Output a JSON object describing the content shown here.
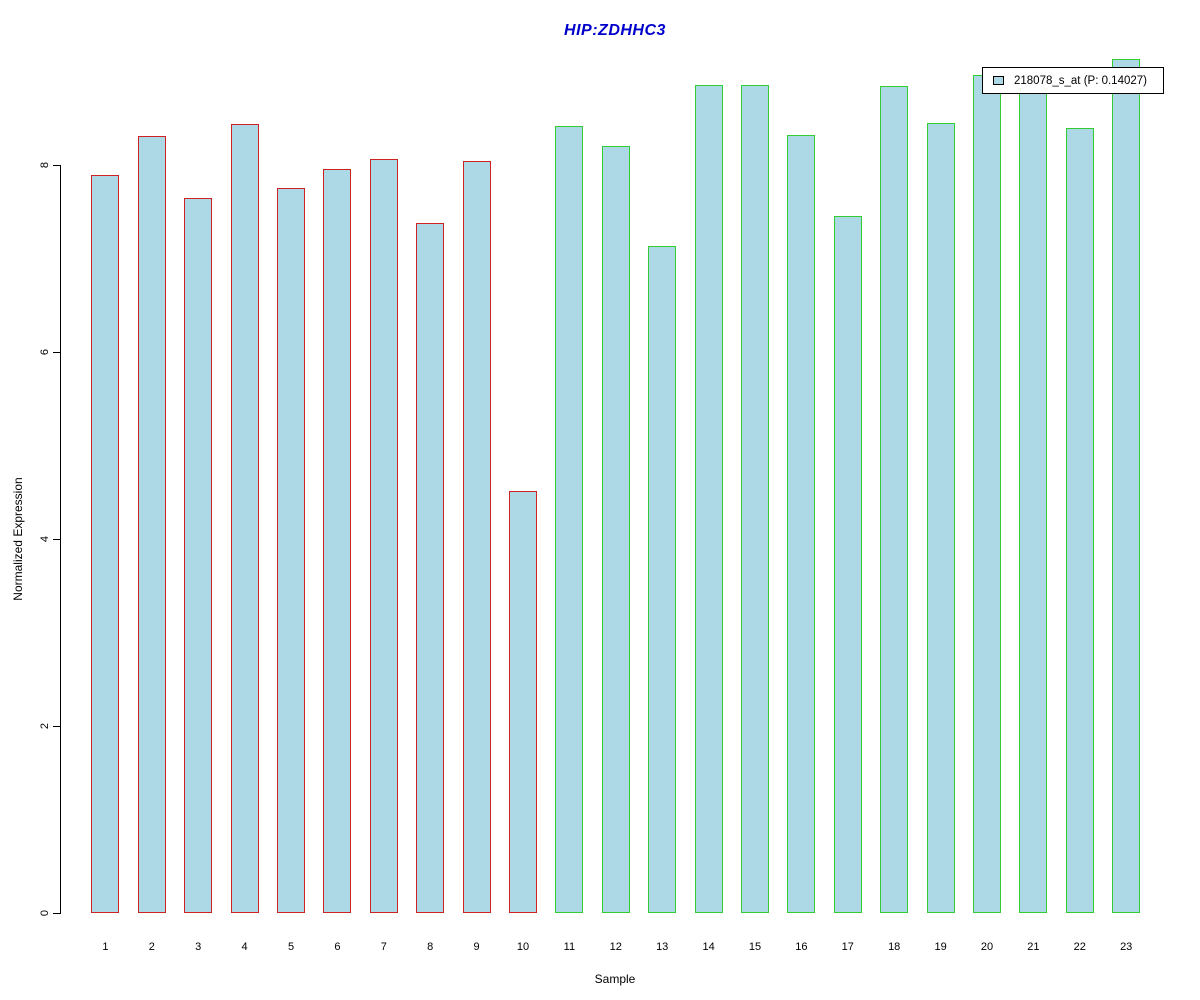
{
  "title": "HIP:ZDHHC3",
  "title_color": "#0000cd",
  "chart_data": {
    "type": "bar",
    "title": "HIP:ZDHHC3",
    "xlabel": "Sample",
    "ylabel": "Normalized Expression",
    "categories": [
      "1",
      "2",
      "3",
      "4",
      "5",
      "6",
      "7",
      "8",
      "9",
      "10",
      "11",
      "12",
      "13",
      "14",
      "15",
      "16",
      "17",
      "18",
      "19",
      "20",
      "21",
      "22",
      "23"
    ],
    "series": [
      {
        "name": "218078_s_at (P: 0.14027)",
        "values": [
          7.89,
          8.31,
          7.65,
          8.44,
          7.75,
          7.96,
          8.06,
          7.38,
          8.04,
          4.51,
          8.42,
          8.2,
          7.13,
          8.86,
          8.86,
          8.32,
          7.45,
          8.84,
          8.45,
          8.96,
          8.9,
          8.4,
          9.13
        ]
      }
    ],
    "bar_fill": "#add8e6",
    "groups": [
      {
        "name": "samples-1-10",
        "start_index": 0,
        "end_index": 9,
        "border_color": "#cc2222"
      },
      {
        "name": "samples-11-23",
        "start_index": 10,
        "end_index": 22,
        "border_color": "#33cc33"
      }
    ],
    "yticks": [
      0,
      2,
      4,
      6,
      8
    ],
    "ylim": [
      0,
      9.2
    ],
    "grid": false,
    "legend_position": "top-right"
  },
  "legend": {
    "label": "218078_s_at (P: 0.14027)",
    "swatch_fill": "#add8e6",
    "swatch_border": "#000000"
  }
}
